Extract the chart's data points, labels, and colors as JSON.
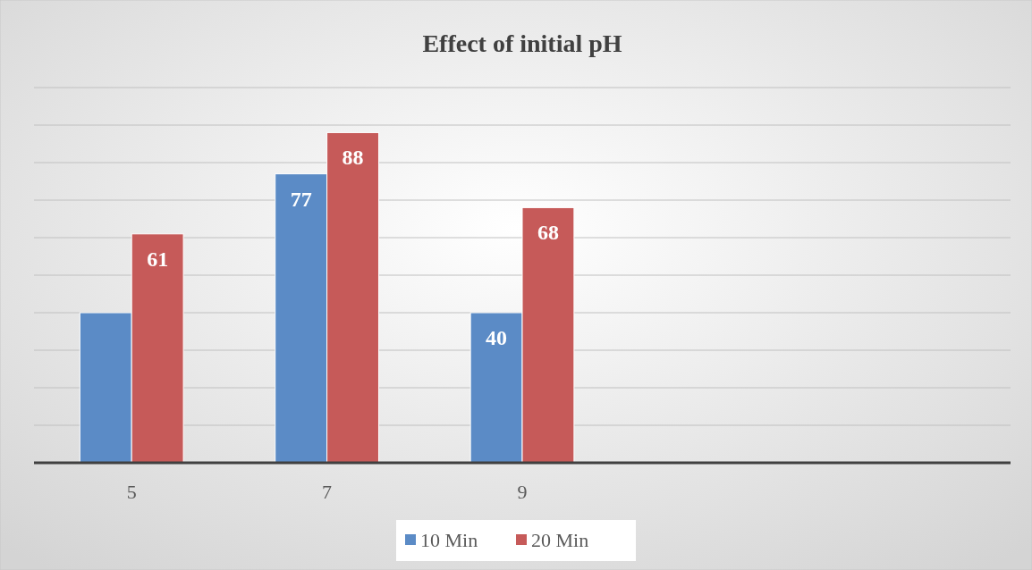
{
  "chart_data": {
    "type": "bar",
    "title": "Effect of initial pH",
    "categories": [
      "5",
      "7",
      "9",
      null,
      null
    ],
    "series": [
      {
        "name": "10 Min",
        "color": "#5b8bc6",
        "values": [
          40,
          77,
          40,
          null,
          null
        ],
        "value_labels": [
          null,
          "77",
          "40",
          null,
          null
        ]
      },
      {
        "name": "20 Min",
        "color": "#c65a59",
        "values": [
          61,
          88,
          68,
          null,
          null
        ],
        "value_labels": [
          "61",
          "88",
          "68",
          null,
          null
        ]
      }
    ],
    "ylim": [
      0,
      100
    ],
    "yticks": [
      {
        "value": 0,
        "label": null
      },
      {
        "value": 10,
        "label": null
      },
      {
        "value": 20,
        "label": null
      },
      {
        "value": 30,
        "label": null
      },
      {
        "value": 40,
        "label": null
      },
      {
        "value": 50,
        "label": null
      },
      {
        "value": 60,
        "label": null
      },
      {
        "value": 70,
        "label": null
      },
      {
        "value": 80,
        "label": null
      },
      {
        "value": 90,
        "label": null
      },
      {
        "value": 100,
        "label": null
      }
    ],
    "tick_labels": "x",
    "grid": "y",
    "legend": "bottom"
  }
}
